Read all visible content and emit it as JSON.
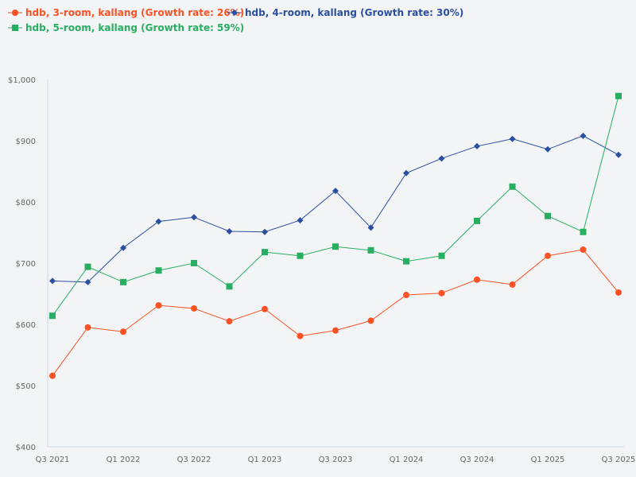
{
  "chart_data": {
    "type": "line",
    "categories": [
      "Q3 2021",
      "Q4 2021",
      "Q1 2022",
      "Q2 2022",
      "Q3 2022",
      "Q4 2022",
      "Q1 2023",
      "Q2 2023",
      "Q3 2023",
      "Q4 2023",
      "Q1 2024",
      "Q2 2024",
      "Q3 2024",
      "Q4 2024",
      "Q1 2025",
      "Q2 2025",
      "Q3 2025"
    ],
    "x_tick_labels": [
      "Q3 2021",
      "Q1 2022",
      "Q3 2022",
      "Q1 2023",
      "Q3 2023",
      "Q1 2024",
      "Q3 2024",
      "Q1 2025",
      "Q3 2025"
    ],
    "y_tick_labels": [
      "$400",
      "$500",
      "$600",
      "$700",
      "$800",
      "$900",
      "$1,000"
    ],
    "ylim": [
      400,
      1000
    ],
    "grid": false,
    "legend_position": "top-left",
    "series": [
      {
        "name": "hdb, 3-room, kallang (Growth rate: 26%)",
        "color": "#fc5124",
        "marker": "circle",
        "values": [
          516,
          595,
          588,
          631,
          626,
          605,
          625,
          581,
          590,
          606,
          648,
          651,
          673,
          665,
          712,
          722,
          652
        ]
      },
      {
        "name": "hdb, 4-room, kallang (Growth rate: 30%)",
        "color": "#2a4ea0",
        "marker": "diamond",
        "values": [
          671,
          669,
          725,
          768,
          775,
          752,
          751,
          770,
          818,
          758,
          847,
          871,
          891,
          903,
          886,
          908,
          877
        ]
      },
      {
        "name": "hdb, 5-room, kallang (Growth rate: 59%)",
        "color": "#27ae60",
        "marker": "square",
        "values": [
          614,
          694,
          669,
          688,
          700,
          662,
          718,
          712,
          727,
          721,
          703,
          712,
          769,
          825,
          777,
          751,
          973
        ]
      }
    ]
  }
}
